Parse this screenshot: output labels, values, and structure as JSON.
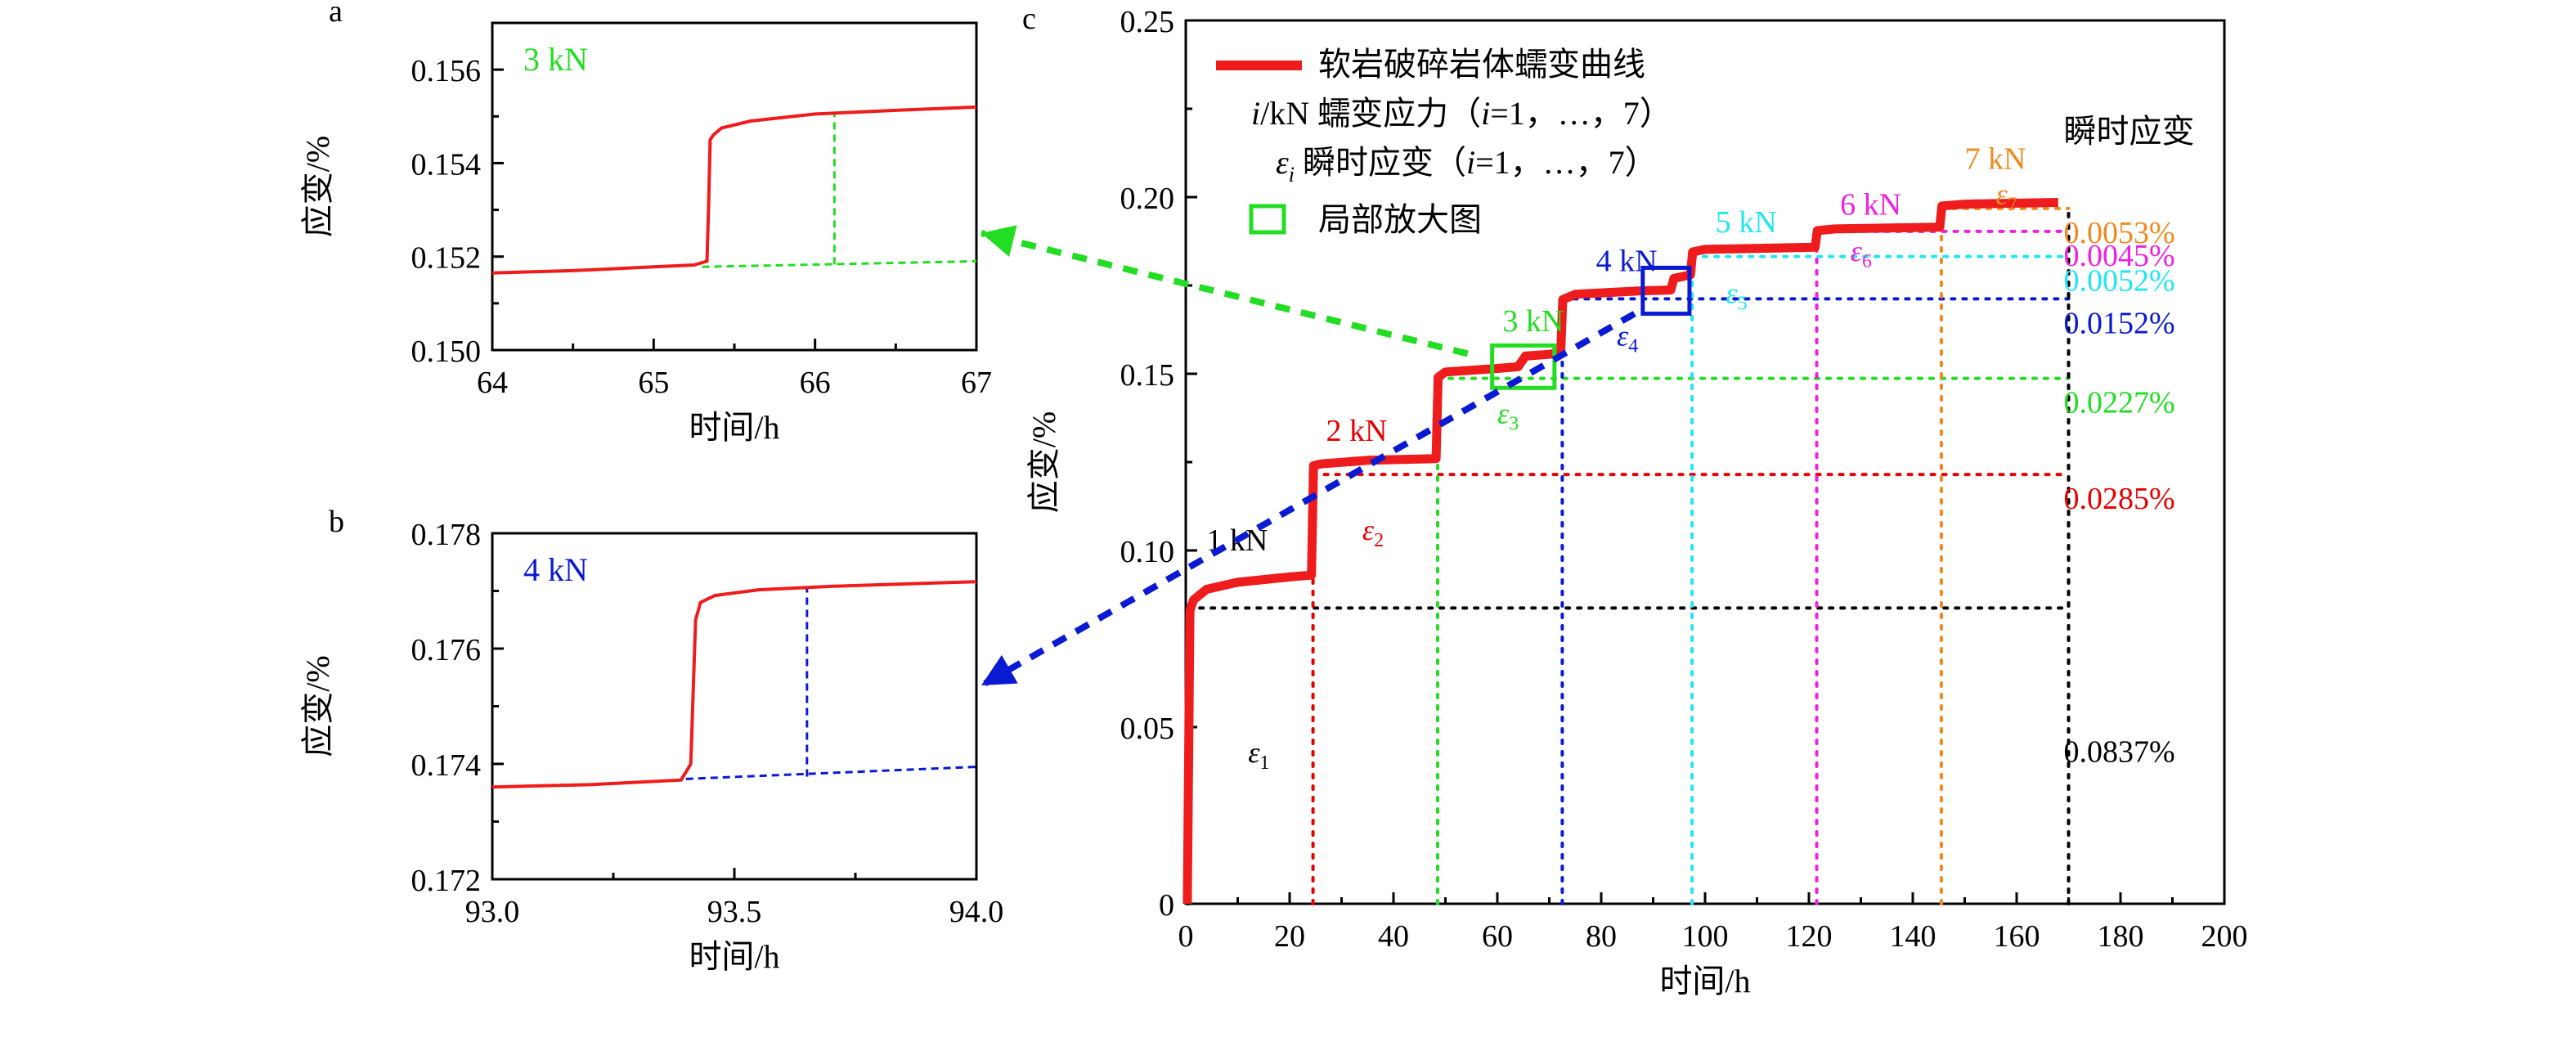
{
  "panels": {
    "a": {
      "letter": "a",
      "load_label": "3 kN"
    },
    "b": {
      "letter": "b",
      "load_label": "4 kN"
    },
    "c": {
      "letter": "c"
    }
  },
  "legend": {
    "curve": "软岩破碎岩体蠕变曲线",
    "load_sym": "i",
    "load_text": "/kN  蠕变应力（",
    "load_tail": "=1，…，7）",
    "eps_sym": "ε",
    "eps_sub": "i",
    "eps_text": "  瞬时应变（",
    "eps_tail": "=1，…，7）",
    "zoom": "局部放大图"
  },
  "instant_header": "瞬时应变",
  "colors": {
    "curve": "#ee1c1c",
    "1kN": "#000000",
    "2kN": "#e60000",
    "3kN": "#22dd22",
    "4kN": "#0a1ad2",
    "5kN": "#22e6f0",
    "6kN": "#f020e0",
    "7kN": "#f08a1e"
  },
  "chart_data": [
    {
      "id": "a",
      "type": "line",
      "xlabel": "时间/h",
      "ylabel": "应变/%",
      "xlim": [
        64,
        67
      ],
      "ylim": [
        0.15,
        0.157
      ],
      "xticks": [
        "64",
        "65",
        "66",
        "67"
      ],
      "yticks": [
        "0.150",
        "0.152",
        "0.154",
        "0.156"
      ],
      "series": [
        {
          "x": [
            64.0,
            64.5,
            65.0,
            65.25,
            65.33,
            65.34,
            65.35,
            65.37,
            65.42,
            65.6,
            66.0,
            66.5,
            67.0
          ],
          "y": [
            0.15165,
            0.1517,
            0.15178,
            0.15182,
            0.1519,
            0.153,
            0.1545,
            0.1546,
            0.15475,
            0.1549,
            0.15505,
            0.15513,
            0.1552
          ]
        }
      ],
      "guides": {
        "baseline": [
          [
            65.3,
            0.15178
          ],
          [
            67.0,
            0.1519
          ]
        ],
        "jump_x": 66.12,
        "jump_y": [
          0.15183,
          0.15508
        ]
      }
    },
    {
      "id": "b",
      "type": "line",
      "xlabel": "时间/h",
      "ylabel": "应变/%",
      "xlim": [
        93.0,
        94.0
      ],
      "ylim": [
        0.172,
        0.178
      ],
      "xticks": [
        "93.0",
        "93.5",
        "94.0"
      ],
      "yticks": [
        "0.172",
        "0.174",
        "0.176",
        "0.178"
      ],
      "series": [
        {
          "x": [
            93.0,
            93.2,
            93.39,
            93.41,
            93.42,
            93.43,
            93.46,
            93.55,
            93.7,
            93.85,
            94.0
          ],
          "y": [
            0.1736,
            0.17364,
            0.17372,
            0.174,
            0.1765,
            0.1768,
            0.17692,
            0.17702,
            0.17708,
            0.17712,
            0.17716
          ]
        }
      ],
      "guides": {
        "baseline": [
          [
            93.4,
            0.17374
          ],
          [
            94.0,
            0.17395
          ]
        ],
        "jump_x": 93.65,
        "jump_y": [
          0.17378,
          0.17708
        ]
      }
    },
    {
      "id": "c",
      "type": "line",
      "xlabel": "时间/h",
      "ylabel": "应变/%",
      "xlim": [
        0,
        200
      ],
      "ylim": [
        0,
        0.25
      ],
      "xticks": [
        "0",
        "20",
        "40",
        "60",
        "80",
        "100",
        "120",
        "140",
        "160",
        "180",
        "200"
      ],
      "yticks": [
        "0",
        "0.05",
        "0.10",
        "0.15",
        "0.20",
        "0.25"
      ],
      "series": [
        {
          "name": "软岩破碎岩体蠕变曲线",
          "x": [
            0.3,
            0.8,
            1.5,
            4,
            10,
            20,
            24.2,
            24.6,
            26,
            35,
            48.2,
            48.6,
            50,
            60,
            64,
            65.4,
            70,
            72.2,
            72.6,
            75,
            88,
            93.4,
            94,
            97.2,
            97.6,
            100,
            121.2,
            121.6,
            125,
            145.2,
            145.6,
            150,
            168
          ],
          "y": [
            0,
            0.083,
            0.086,
            0.089,
            0.091,
            0.0925,
            0.093,
            0.124,
            0.1245,
            0.1255,
            0.126,
            0.149,
            0.1505,
            0.1515,
            0.152,
            0.155,
            0.1555,
            0.156,
            0.171,
            0.1725,
            0.1735,
            0.1737,
            0.177,
            0.178,
            0.1845,
            0.1852,
            0.1858,
            0.1905,
            0.191,
            0.1915,
            0.1975,
            0.198,
            0.1985
          ]
        }
      ],
      "steps": [
        {
          "load": "1 kN",
          "t": 0.5,
          "base": 0,
          "top": 0.0837,
          "instant": "0.0837%",
          "eps": "1"
        },
        {
          "load": "2 kN",
          "t": 24.5,
          "base": 0.093,
          "top": 0.1215,
          "instant": "0.0285%",
          "eps": "2"
        },
        {
          "load": "3 kN",
          "t": 48.5,
          "base": 0.126,
          "top": 0.1487,
          "instant": "0.0227%",
          "eps": "3"
        },
        {
          "load": "4 kN",
          "t": 72.5,
          "base": 0.156,
          "top": 0.1712,
          "instant": "0.0152%",
          "eps": "4"
        },
        {
          "load": "5 kN",
          "t": 97.5,
          "base": 0.178,
          "top": 0.1832,
          "instant": "0.0052%",
          "eps": "5"
        },
        {
          "load": "6 kN",
          "t": 121.5,
          "base": 0.1858,
          "top": 0.1903,
          "instant": "0.0045%",
          "eps": "6"
        },
        {
          "load": "7 kN",
          "t": 145.5,
          "base": 0.1915,
          "top": 0.1968,
          "instant": "0.0053%",
          "eps": "7"
        }
      ],
      "instant_line_x": 170,
      "zoom_boxes": [
        {
          "panel": "a",
          "x": [
            59,
            71
          ],
          "y": [
            0.146,
            0.158
          ]
        },
        {
          "panel": "b",
          "x": [
            88,
            97
          ],
          "y": [
            0.167,
            0.18
          ]
        }
      ]
    }
  ]
}
